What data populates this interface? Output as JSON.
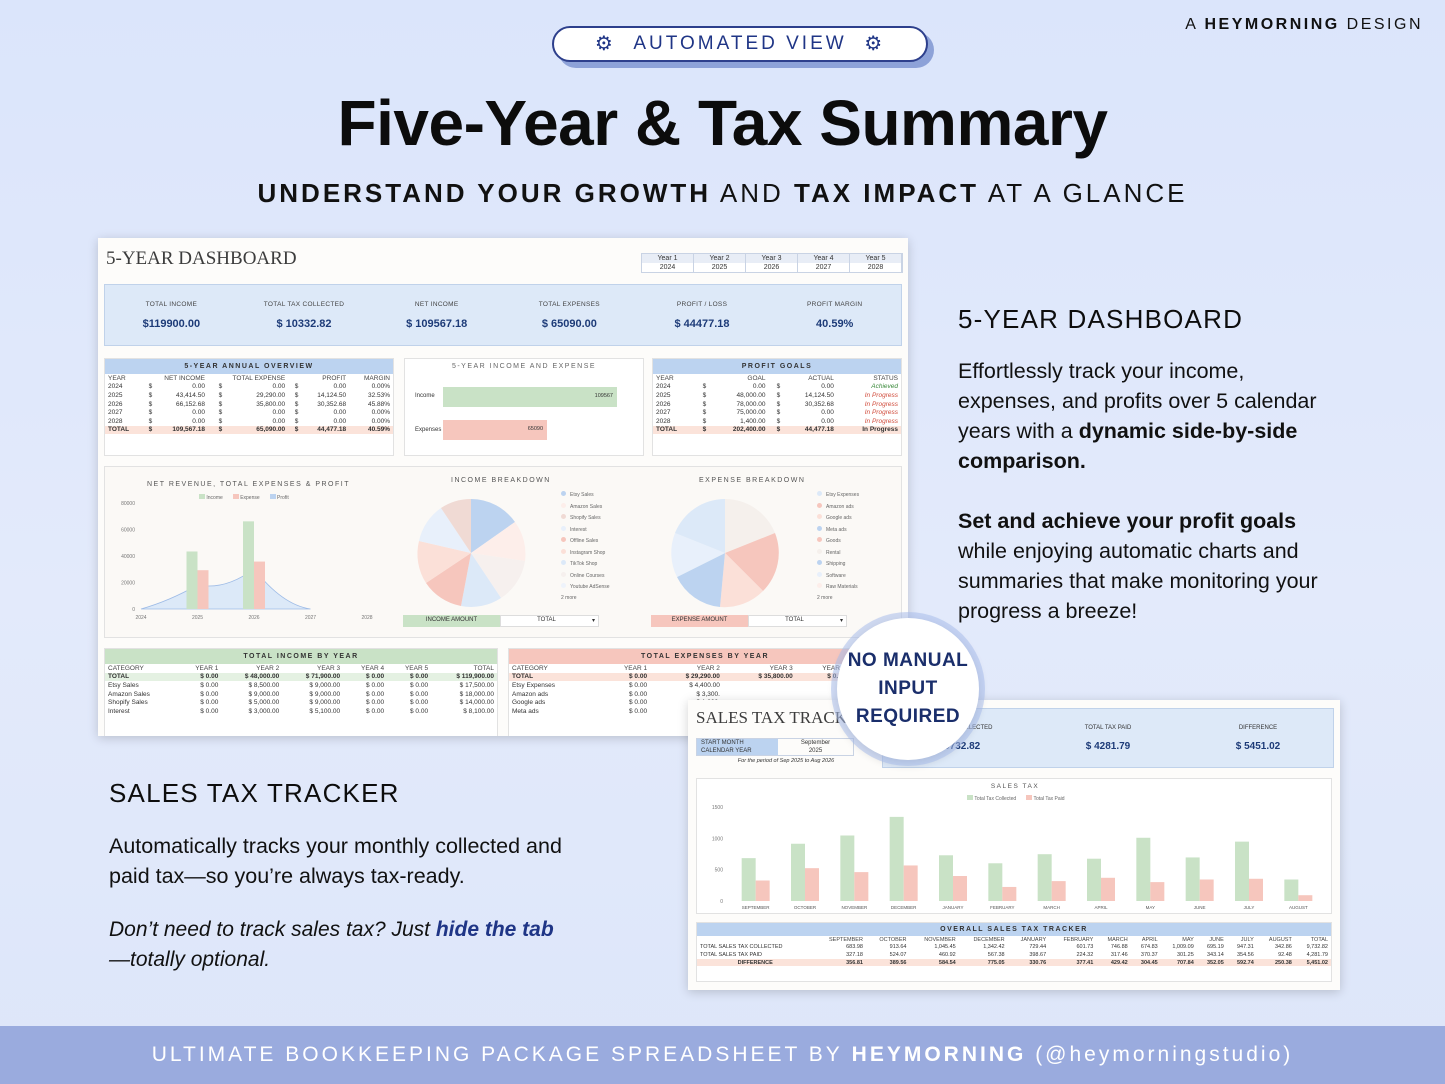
{
  "brand": {
    "prefix": "A",
    "name": "HEYMORNING",
    "suffix": "DESIGN"
  },
  "pill": {
    "label": "AUTOMATED VIEW"
  },
  "title": "Five-Year & Tax Summary",
  "subtitle": {
    "p1": "UNDERSTAND YOUR GROWTH",
    "p2": "AND",
    "p3": "TAX IMPACT",
    "p4": "AT A GLANCE"
  },
  "dashboard": {
    "title": "5-YEAR DASHBOARD",
    "years": [
      {
        "y": "Year 1",
        "v": "2024"
      },
      {
        "y": "Year 2",
        "v": "2025"
      },
      {
        "y": "Year 3",
        "v": "2026"
      },
      {
        "y": "Year 4",
        "v": "2027"
      },
      {
        "y": "Year 5",
        "v": "2028"
      }
    ],
    "kpis": [
      {
        "l": "TOTAL INCOME",
        "v": "$119900.00"
      },
      {
        "l": "TOTAL TAX COLLECTED",
        "v": "$ 10332.82"
      },
      {
        "l": "NET INCOME",
        "v": "$ 109567.18"
      },
      {
        "l": "TOTAL EXPENSES",
        "v": "$ 65090.00"
      },
      {
        "l": "PROFIT / LOSS",
        "v": "$ 44477.18"
      },
      {
        "l": "PROFIT MARGIN",
        "v": "40.59%"
      }
    ],
    "overview": {
      "title": "5-YEAR ANNUAL OVERVIEW",
      "headers": [
        "YEAR",
        "NET INCOME",
        "TOTAL EXPENSE",
        "PROFIT",
        "MARGIN"
      ],
      "rows": [
        [
          "2024",
          "$",
          "0.00",
          "$",
          "0.00",
          "$",
          "0.00",
          "0.00%"
        ],
        [
          "2025",
          "$",
          "43,414.50",
          "$",
          "29,290.00",
          "$",
          "14,124.50",
          "32.53%"
        ],
        [
          "2026",
          "$",
          "66,152.68",
          "$",
          "35,800.00",
          "$",
          "30,352.68",
          "45.88%"
        ],
        [
          "2027",
          "$",
          "0.00",
          "$",
          "0.00",
          "$",
          "0.00",
          "0.00%"
        ],
        [
          "2028",
          "$",
          "0.00",
          "$",
          "0.00",
          "$",
          "0.00",
          "0.00%"
        ]
      ],
      "total": [
        "TOTAL",
        "$",
        "109,567.18",
        "$",
        "65,090.00",
        "$",
        "44,477.18",
        "40.59%"
      ]
    },
    "ie": {
      "title": "5-YEAR INCOME AND EXPENSE",
      "income_label": "Income",
      "income_value": "109567",
      "expense_label": "Expenses",
      "expense_value": "65090"
    },
    "goals": {
      "title": "PROFIT GOALS",
      "headers": [
        "YEAR",
        "GOAL",
        "ACTUAL",
        "STATUS"
      ],
      "rows": [
        [
          "2024",
          "$",
          "0.00",
          "$",
          "0.00",
          "Achieved"
        ],
        [
          "2025",
          "$",
          "48,000.00",
          "$",
          "14,124.50",
          "In Progress"
        ],
        [
          "2026",
          "$",
          "78,000.00",
          "$",
          "30,352.68",
          "In Progress"
        ],
        [
          "2027",
          "$",
          "75,000.00",
          "$",
          "0.00",
          "In Progress"
        ],
        [
          "2028",
          "$",
          "1,400.00",
          "$",
          "0.00",
          "In Progress"
        ]
      ],
      "total": [
        "TOTAL",
        "$",
        "202,400.00",
        "$",
        "44,477.18",
        "In Progress"
      ]
    },
    "netrev": {
      "title": "NET REVENUE, TOTAL EXPENSES & PROFIT",
      "legend": [
        "Income",
        "Expense",
        "Profit"
      ]
    },
    "income_breakdown": {
      "title": "INCOME BREAKDOWN",
      "legend": [
        "Etsy Sales",
        "Amazon Sales",
        "Shopify Sales",
        "Interest",
        "Offline Sales",
        "Instagram Shop",
        "TikTok Shop",
        "Online Courses",
        "Youtube AdSense",
        "2 more"
      ],
      "btn": "INCOME AMOUNT",
      "sel": "TOTAL"
    },
    "expense_breakdown": {
      "title": "EXPENSE BREAKDOWN",
      "legend": [
        "Etsy Expenses",
        "Amazon ads",
        "Google ads",
        "Meta ads",
        "Goods",
        "Rental",
        "Shipping",
        "Software",
        "Raw Materials",
        "2 more"
      ],
      "btn": "EXPENSE AMOUNT",
      "sel": "TOTAL"
    },
    "income_by_year": {
      "title": "TOTAL INCOME BY YEAR",
      "headers": [
        "CATEGORY",
        "YEAR 1",
        "YEAR 2",
        "YEAR 3",
        "YEAR 4",
        "YEAR 5",
        "TOTAL"
      ],
      "rows": [
        [
          "TOTAL",
          "$ 0.00",
          "$ 48,000.00",
          "$ 71,900.00",
          "$ 0.00",
          "$ 0.00",
          "$ 119,900.00"
        ],
        [
          "Etsy Sales",
          "$ 0.00",
          "$ 8,500.00",
          "$ 9,000.00",
          "$ 0.00",
          "$ 0.00",
          "$ 17,500.00"
        ],
        [
          "Amazon Sales",
          "$ 0.00",
          "$ 9,000.00",
          "$ 9,000.00",
          "$ 0.00",
          "$ 0.00",
          "$ 18,000.00"
        ],
        [
          "Shopify Sales",
          "$ 0.00",
          "$ 5,000.00",
          "$ 9,000.00",
          "$ 0.00",
          "$ 0.00",
          "$ 14,000.00"
        ],
        [
          "Interest",
          "$ 0.00",
          "$ 3,000.00",
          "$ 5,100.00",
          "$ 0.00",
          "$ 0.00",
          "$ 8,100.00"
        ]
      ]
    },
    "expenses_by_year": {
      "title": "TOTAL EXPENSES BY YEAR",
      "headers": [
        "CATEGORY",
        "YEAR 1",
        "YEAR 2",
        "YEAR 3",
        "YEAR 4",
        "YEAR 5"
      ],
      "rows": [
        [
          "TOTAL",
          "$ 0.00",
          "$ 29,290.00",
          "$ 35,800.00",
          "$ 0.00",
          ""
        ],
        [
          "Etsy Expenses",
          "$ 0.00",
          "$ 4,400.00",
          "",
          "",
          ""
        ],
        [
          "Amazon ads",
          "$ 0.00",
          "$ 3,300.",
          "",
          "",
          ""
        ],
        [
          "Google ads",
          "$ 0.00",
          "$ 1,800.",
          "",
          "",
          ""
        ],
        [
          "Meta ads",
          "$ 0.00",
          "$ 1,400.",
          "",
          "",
          ""
        ]
      ]
    }
  },
  "chart_data": [
    {
      "type": "bar",
      "title": "NET REVENUE, TOTAL EXPENSES & PROFIT",
      "categories": [
        "2024",
        "2025",
        "2026",
        "2027",
        "2028"
      ],
      "series": [
        {
          "name": "Income",
          "values": [
            0,
            43414.5,
            66152.68,
            0,
            0
          ]
        },
        {
          "name": "Expense",
          "values": [
            0,
            29290,
            35800,
            0,
            0
          ]
        },
        {
          "name": "Profit",
          "values": [
            0,
            14124.5,
            30352.68,
            0,
            0
          ]
        }
      ],
      "ylim": [
        0,
        80000
      ],
      "yticks": [
        "0",
        "20000",
        "40000",
        "60000",
        "80000"
      ]
    },
    {
      "type": "bar",
      "title": "SALES TAX",
      "categories": [
        "SEPTEMBER",
        "OCTOBER",
        "NOVEMBER",
        "DECEMBER",
        "JANUARY",
        "FEBRUARY",
        "MARCH",
        "APRIL",
        "MAY",
        "JUNE",
        "JULY",
        "AUGUST"
      ],
      "series": [
        {
          "name": "Total Tax Collected",
          "values": [
            683.98,
            913.64,
            1045.45,
            1342.42,
            729.44,
            601.73,
            746.88,
            674.83,
            1009.09,
            695.19,
            947.31,
            342.86
          ]
        },
        {
          "name": "Total Tax Paid",
          "values": [
            327.18,
            524.07,
            460.92,
            567.38,
            398.67,
            224.32,
            317.46,
            370.37,
            301.25,
            343.14,
            354.56,
            92.48
          ]
        }
      ],
      "ylim": [
        0,
        1500
      ],
      "yticks": [
        "0",
        "500",
        "1000",
        "1500"
      ]
    }
  ],
  "side1": {
    "heading": "5-YEAR DASHBOARD",
    "p1a": "Effortlessly track your income, expenses, and profits over 5 calendar years with a ",
    "p1b": "dynamic side-by-side comparison.",
    "p2a": "Set and achieve your profit goals",
    "p2b": " while enjoying automatic charts and summaries that make monitoring your progress a breeze!"
  },
  "badge": {
    "l1": "NO MANUAL",
    "l2": "INPUT",
    "l3": "REQUIRED"
  },
  "taxsheet": {
    "title": "SALES TAX TRACKER",
    "start_label": "START MONTH",
    "start_value": "September",
    "cal_label": "CALENDAR YEAR",
    "cal_value": "2025",
    "period": "For the period of Sep 2025 to Aug 2026",
    "k1l": "TOTAL TAX COLLECTED",
    "k1v": "$ 9732.82",
    "k2l": "TOTAL TAX PAID",
    "k2v": "$ 4281.79",
    "k3l": "DIFFERENCE",
    "k3v": "$ 5451.02",
    "chart_title": "SALES TAX",
    "legend": [
      "Total Tax Collected",
      "Total Tax Paid"
    ],
    "overall_title": "OVERALL SALES TAX TRACKER",
    "months": [
      "SEPTEMBER",
      "OCTOBER",
      "NOVEMBER",
      "DECEMBER",
      "JANUARY",
      "FEBRUARY",
      "MARCH",
      "APRIL",
      "MAY",
      "JUNE",
      "JULY",
      "AUGUST",
      "TOTAL"
    ],
    "rows": [
      {
        "label": "TOTAL SALES TAX COLLECTED",
        "vals": [
          "683.98",
          "913.64",
          "1,045.45",
          "1,342.42",
          "729.44",
          "601.73",
          "746.88",
          "674.83",
          "1,009.09",
          "695.19",
          "947.31",
          "342.86",
          "9,732.82"
        ]
      },
      {
        "label": "TOTAL SALES TAX PAID",
        "vals": [
          "327.18",
          "524.07",
          "460.92",
          "567.38",
          "398.67",
          "224.32",
          "317.46",
          "370.37",
          "301.25",
          "343.14",
          "354.56",
          "92.48",
          "4,281.79"
        ]
      },
      {
        "label": "DIFFERENCE",
        "vals": [
          "356.81",
          "389.56",
          "584.54",
          "775.05",
          "330.76",
          "377.41",
          "429.42",
          "304.45",
          "707.84",
          "352.05",
          "592.74",
          "250.38",
          "5,451.02"
        ]
      }
    ]
  },
  "side2": {
    "heading": "SALES TAX TRACKER",
    "p1": "Automatically tracks your monthly collected and paid tax—so you’re always tax-ready.",
    "i1": "Don’t need to track sales tax? Just ",
    "i2": "hide the tab",
    "i3": "—totally optional."
  },
  "footer": {
    "a": "ULTIMATE BOOKKEEPING PACKAGE SPREADSHEET BY ",
    "b": "HEYMORNING",
    "c": " (@heymorningstudio)"
  },
  "colors": {
    "accent": "#1f3586",
    "income": "#c9e2c6",
    "expense": "#f6c6bd",
    "profit": "#bcd3f0",
    "footer": "#9aabde"
  }
}
